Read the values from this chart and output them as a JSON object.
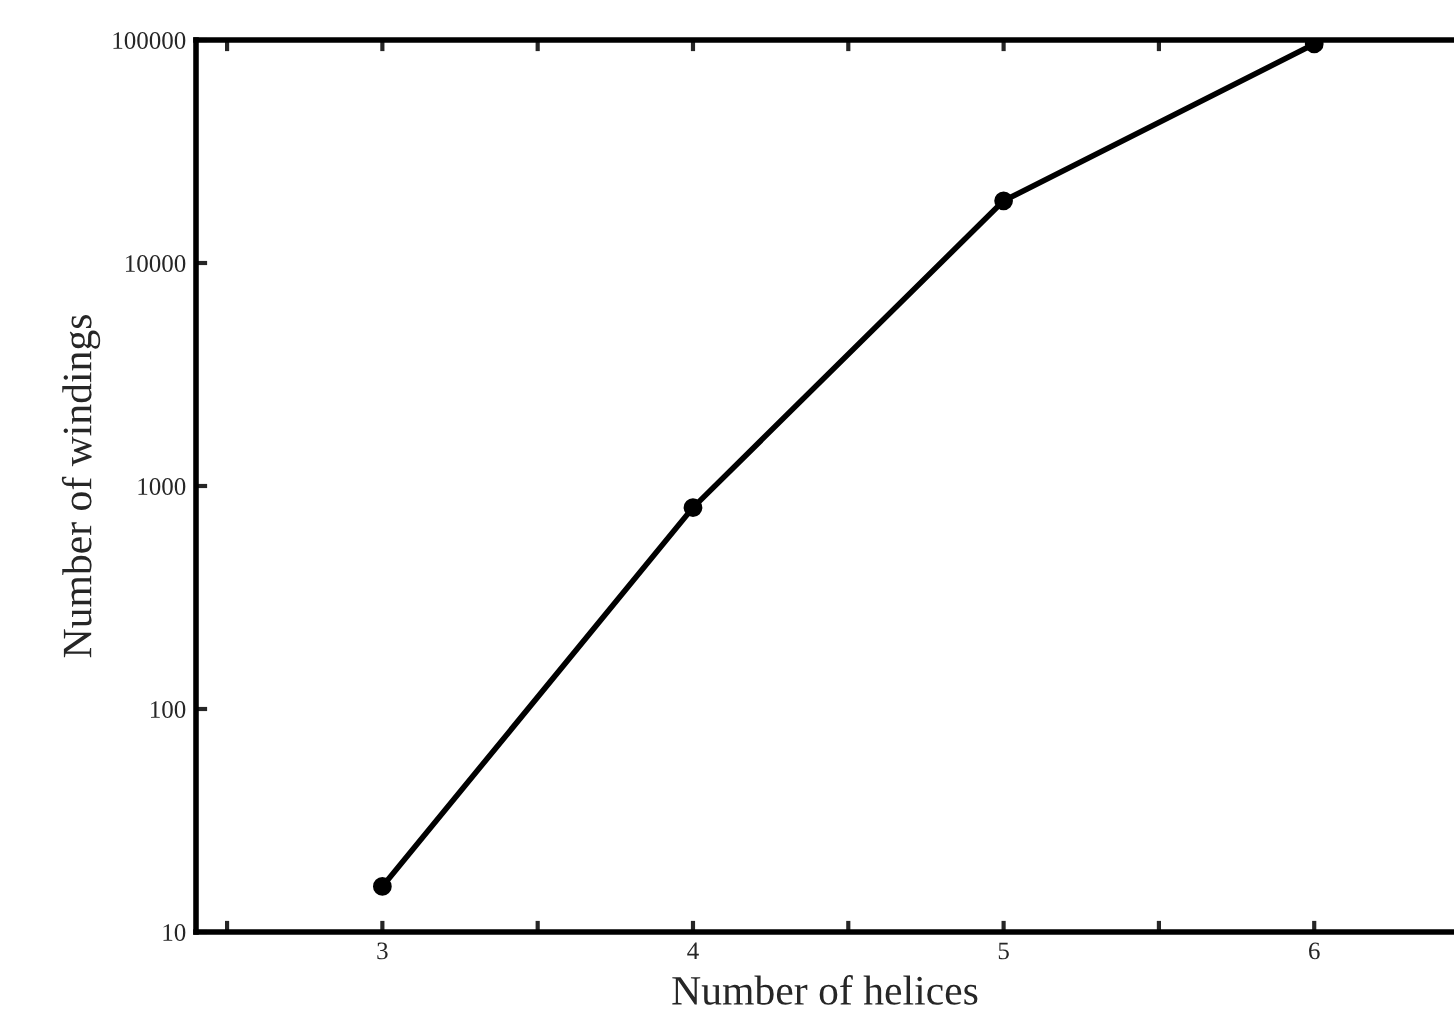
{
  "chart_data": {
    "type": "line",
    "xlabel": "Number of helices",
    "ylabel": "Number of windings",
    "x": [
      3,
      4,
      5,
      6
    ],
    "series": [
      {
        "color": "#000000",
        "values": [
          16,
          800,
          19000,
          96000
        ]
      }
    ],
    "log": "y",
    "marker": "circle",
    "line_style": "solid",
    "grid": false,
    "legend": false,
    "xlim": [
      2.4,
      6.45
    ],
    "ylim": [
      10,
      100000
    ],
    "xticks": [
      {
        "value": 2.5,
        "label": null
      },
      3,
      {
        "value": 3.5,
        "label": null
      },
      4,
      {
        "value": 4.5,
        "label": null
      },
      5,
      {
        "value": 5.5,
        "label": null
      },
      6
    ],
    "yticks": [
      10,
      100,
      1000,
      10000,
      100000
    ]
  }
}
